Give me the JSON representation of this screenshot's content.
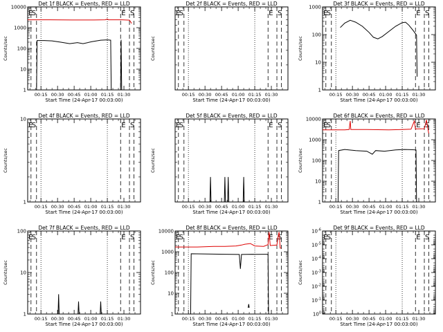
{
  "x_axis": {
    "label": "Start Time (24-Apr-17 00:03:00)",
    "range_minutes": [
      0,
      102
    ],
    "ticks": [
      {
        "minute": 12,
        "label": "00:15"
      },
      {
        "minute": 27,
        "label": "00:30"
      },
      {
        "minute": 42,
        "label": "00:45"
      },
      {
        "minute": 57,
        "label": "01:00"
      },
      {
        "minute": 72,
        "label": "01:15"
      },
      {
        "minute": 87,
        "label": "01:30"
      }
    ]
  },
  "y_axis_label": "Counts/sec",
  "colors": {
    "events": "#000000",
    "lld": "#dd0000"
  },
  "chart_data": [
    {
      "type": "line",
      "title": "Det 1f BLACK = Events, RED = LLD",
      "yscale": "log",
      "ylim": [
        1,
        10000
      ],
      "yticks": [
        {
          "v": 1,
          "label": "1"
        },
        {
          "v": 10,
          "label": "10"
        },
        {
          "v": 100,
          "label": "100"
        },
        {
          "v": 1000,
          "label": "1000"
        },
        {
          "v": 10000,
          "label": "10000"
        }
      ],
      "markers": [
        {
          "label": "E",
          "minute": 0
        },
        {
          "label": "S",
          "minute": 3
        },
        {
          "label": "E",
          "minute": 84
        },
        {
          "label": "S",
          "minute": 92
        }
      ],
      "dotted_minutes": [
        12,
        72
      ],
      "dashed_minutes": [
        0,
        3,
        8,
        84,
        92,
        96
      ],
      "series": [
        {
          "color": "events",
          "values": [
            [
              8,
              1
            ],
            [
              8.5,
              240
            ],
            [
              15,
              240
            ],
            [
              22,
              230
            ],
            [
              30,
              200
            ],
            [
              38,
              170
            ],
            [
              45,
              190
            ],
            [
              50,
              170
            ],
            [
              58,
              210
            ],
            [
              66,
              250
            ],
            [
              72,
              260
            ],
            [
              75,
              250
            ],
            [
              75.5,
              1
            ],
            [
              84,
              1
            ],
            [
              84.5,
              260
            ],
            [
              85,
              1
            ]
          ]
        },
        {
          "color": "lld",
          "values": [
            [
              0,
              2400
            ],
            [
              20,
              2400
            ],
            [
              40,
              2350
            ],
            [
              60,
              2350
            ],
            [
              70,
              2400
            ],
            [
              72,
              2600
            ],
            [
              73,
              2400
            ],
            [
              85,
              2400
            ],
            [
              92,
              2300
            ],
            [
              94,
              1600
            ]
          ]
        }
      ]
    },
    {
      "type": "line",
      "title": "Det 2f BLACK = Events, RED = LLD",
      "yscale": "log",
      "ylim": [
        1,
        10
      ],
      "yticks": [],
      "markers": [
        {
          "label": "E",
          "minute": 0
        },
        {
          "label": "S",
          "minute": 3
        },
        {
          "label": "E",
          "minute": 84
        },
        {
          "label": "S",
          "minute": 92
        }
      ],
      "dotted_minutes": [
        12,
        72
      ],
      "dashed_minutes": [
        0,
        3,
        8,
        84,
        92,
        96
      ],
      "series": []
    },
    {
      "type": "line",
      "title": "Det 3f BLACK = Events, RED = LLD",
      "yscale": "log",
      "ylim": [
        1,
        1000
      ],
      "yticks": [
        {
          "v": 1,
          "label": "1"
        },
        {
          "v": 10,
          "label": "10"
        },
        {
          "v": 100,
          "label": "100"
        },
        {
          "v": 1000,
          "label": "1000"
        }
      ],
      "markers": [
        {
          "label": "E",
          "minute": 0
        },
        {
          "label": "S",
          "minute": 3
        },
        {
          "label": "E",
          "minute": 84
        },
        {
          "label": "S",
          "minute": 92
        }
      ],
      "dotted_minutes": [
        12,
        72
      ],
      "dashed_minutes": [
        0,
        3,
        8,
        84,
        92,
        96
      ],
      "series": [
        {
          "color": "events",
          "values": [
            [
              16,
              180
            ],
            [
              20,
              260
            ],
            [
              25,
              330
            ],
            [
              30,
              280
            ],
            [
              36,
              200
            ],
            [
              42,
              120
            ],
            [
              46,
              80
            ],
            [
              50,
              70
            ],
            [
              54,
              85
            ],
            [
              60,
              130
            ],
            [
              66,
              200
            ],
            [
              72,
              270
            ],
            [
              75,
              280
            ],
            [
              78,
              220
            ],
            [
              82,
              140
            ],
            [
              85,
              95
            ],
            [
              85.5,
              3
            ]
          ]
        }
      ]
    },
    {
      "type": "line",
      "title": "Det 4f BLACK = Events, RED = LLD",
      "yscale": "log",
      "ylim": [
        1,
        10
      ],
      "yticks": [
        {
          "v": 1,
          "label": "1"
        },
        {
          "v": 10,
          "label": "10"
        }
      ],
      "markers": [
        {
          "label": "E",
          "minute": 0
        },
        {
          "label": "S",
          "minute": 3
        },
        {
          "label": "E",
          "minute": 84
        },
        {
          "label": "S",
          "minute": 92
        }
      ],
      "dotted_minutes": [
        12,
        72
      ],
      "dashed_minutes": [
        0,
        3,
        8,
        84,
        92,
        96
      ],
      "series": []
    },
    {
      "type": "line",
      "title": "Det 5f BLACK = Events, RED = LLD",
      "yscale": "log",
      "ylim": [
        1,
        10
      ],
      "yticks": [],
      "markers": [
        {
          "label": "E",
          "minute": 0
        },
        {
          "label": "S",
          "minute": 3
        },
        {
          "label": "E",
          "minute": 84
        },
        {
          "label": "S",
          "minute": 92
        }
      ],
      "dotted_minutes": [
        12,
        72
      ],
      "dashed_minutes": [
        0,
        3,
        8,
        84,
        92,
        96
      ],
      "series": [
        {
          "color": "events",
          "values": [
            [
              31.5,
              1
            ],
            [
              32,
              2
            ],
            [
              32.5,
              1
            ]
          ]
        },
        {
          "color": "events",
          "values": [
            [
              44.5,
              1
            ],
            [
              45,
              2
            ],
            [
              45.5,
              1
            ]
          ]
        },
        {
          "color": "events",
          "values": [
            [
              47.5,
              1
            ],
            [
              48,
              2
            ],
            [
              48.5,
              1
            ]
          ]
        },
        {
          "color": "events",
          "values": [
            [
              61.5,
              1
            ],
            [
              62,
              2
            ],
            [
              62.5,
              1
            ]
          ]
        }
      ]
    },
    {
      "type": "line",
      "title": "Det 6f BLACK = Events, RED = LLD",
      "yscale": "log",
      "ylim": [
        1,
        10000
      ],
      "yticks": [
        {
          "v": 1,
          "label": "1"
        },
        {
          "v": 10,
          "label": "10"
        },
        {
          "v": 100,
          "label": "100"
        },
        {
          "v": 1000,
          "label": "1000"
        },
        {
          "v": 10000,
          "label": "10000"
        }
      ],
      "markers": [
        {
          "label": "E",
          "minute": 0
        },
        {
          "label": "S",
          "minute": 3
        },
        {
          "label": "E",
          "minute": 84
        },
        {
          "label": "S",
          "minute": 92
        }
      ],
      "dotted_minutes": [
        12,
        72
      ],
      "dashed_minutes": [
        0,
        3,
        8,
        84,
        92,
        96
      ],
      "series": [
        {
          "color": "events",
          "values": [
            [
              14,
              1
            ],
            [
              14.5,
              300
            ],
            [
              20,
              340
            ],
            [
              30,
              300
            ],
            [
              40,
              280
            ],
            [
              45,
              200
            ],
            [
              48,
              300
            ],
            [
              56,
              280
            ],
            [
              66,
              320
            ],
            [
              74,
              340
            ],
            [
              80,
              330
            ],
            [
              84.5,
              320
            ],
            [
              85,
              1
            ]
          ]
        },
        {
          "color": "lld",
          "values": [
            [
              0,
              3000
            ],
            [
              20,
              3000
            ],
            [
              24,
              3100
            ],
            [
              25,
              8000
            ],
            [
              25.5,
              3100
            ],
            [
              40,
              3100
            ],
            [
              60,
              3000
            ],
            [
              72,
              3100
            ],
            [
              80,
              3200
            ],
            [
              83,
              8000
            ],
            [
              84,
              3300
            ],
            [
              92,
              3400
            ],
            [
              94,
              9000
            ],
            [
              95,
              4000
            ],
            [
              96,
              2000
            ]
          ]
        }
      ]
    },
    {
      "type": "line",
      "title": "Det 7f BLACK = Events, RED = LLD",
      "yscale": "log",
      "ylim": [
        1,
        100
      ],
      "yticks": [
        {
          "v": 1,
          "label": "1"
        },
        {
          "v": 10,
          "label": "10"
        },
        {
          "v": 100,
          "label": "100"
        }
      ],
      "markers": [
        {
          "label": "E",
          "minute": 0
        },
        {
          "label": "S",
          "minute": 3
        },
        {
          "label": "E",
          "minute": 84
        },
        {
          "label": "S",
          "minute": 92
        }
      ],
      "dotted_minutes": [
        12,
        72
      ],
      "dashed_minutes": [
        0,
        3,
        8,
        84,
        92,
        96
      ],
      "series": [
        {
          "color": "events",
          "values": [
            [
              27.5,
              1
            ],
            [
              28,
              3
            ],
            [
              28.5,
              1
            ]
          ]
        },
        {
          "color": "events",
          "values": [
            [
              45.5,
              1
            ],
            [
              46,
              2
            ],
            [
              46.5,
              1
            ]
          ]
        },
        {
          "color": "events",
          "values": [
            [
              65.5,
              1
            ],
            [
              66,
              2
            ],
            [
              66.5,
              1
            ]
          ]
        }
      ]
    },
    {
      "type": "line",
      "title": "Det 8f BLACK = Events, RED = LLD",
      "yscale": "log",
      "ylim": [
        1,
        10000
      ],
      "yticks": [
        {
          "v": 1,
          "label": "1"
        },
        {
          "v": 10,
          "label": "10"
        },
        {
          "v": 100,
          "label": "100"
        },
        {
          "v": 1000,
          "label": "1000"
        },
        {
          "v": 10000,
          "label": "10000"
        }
      ],
      "markers": [
        {
          "label": "E",
          "minute": 0
        },
        {
          "label": "S",
          "minute": 3
        },
        {
          "label": "E",
          "minute": 84
        },
        {
          "label": "S",
          "minute": 92
        }
      ],
      "dotted_minutes": [
        12,
        72
      ],
      "dashed_minutes": [
        0,
        3,
        8,
        84,
        92,
        96
      ],
      "series": [
        {
          "color": "events",
          "values": [
            [
              14,
              1
            ],
            [
              14.5,
              800
            ],
            [
              30,
              780
            ],
            [
              45,
              760
            ],
            [
              58,
              740
            ],
            [
              59,
              150
            ],
            [
              60,
              740
            ],
            [
              70,
              760
            ],
            [
              72,
              750
            ],
            [
              84,
              760
            ],
            [
              84.5,
              1
            ]
          ]
        },
        {
          "color": "events",
          "values": [
            [
              66,
              2
            ],
            [
              66.5,
              3
            ],
            [
              67,
              2
            ]
          ]
        },
        {
          "color": "lld",
          "values": [
            [
              0,
              1700
            ],
            [
              20,
              1700
            ],
            [
              35,
              1800
            ],
            [
              45,
              1800
            ],
            [
              55,
              1900
            ],
            [
              60,
              2100
            ],
            [
              63,
              2300
            ],
            [
              68,
              2500
            ],
            [
              72,
              1900
            ],
            [
              80,
              1800
            ],
            [
              84,
              2200
            ],
            [
              85,
              9000
            ],
            [
              86,
              2000
            ],
            [
              92,
              2100
            ],
            [
              93,
              5000
            ],
            [
              94,
              9000
            ],
            [
              95,
              1500
            ],
            [
              96,
              1500
            ]
          ]
        }
      ]
    },
    {
      "type": "line",
      "title": "Det 9f BLACK = Events, RED = LLD",
      "yscale": "log",
      "ylim": [
        1,
        1e-06
      ],
      "yticks": [
        {
          "v": 1,
          "label": "10^0"
        },
        {
          "v": 0.1,
          "label": "10^-1"
        },
        {
          "v": 0.01,
          "label": "10^-2"
        },
        {
          "v": 0.001,
          "label": "10^-3"
        },
        {
          "v": 0.0001,
          "label": "10^-4"
        },
        {
          "v": 1e-05,
          "label": "10^-5"
        },
        {
          "v": 1e-06,
          "label": "10^-6"
        }
      ],
      "markers": [
        {
          "label": "E",
          "minute": 0
        },
        {
          "label": "S",
          "minute": 3
        },
        {
          "label": "E",
          "minute": 84
        },
        {
          "label": "S",
          "minute": 92
        }
      ],
      "dotted_minutes": [
        12,
        72
      ],
      "dashed_minutes": [
        0,
        3,
        8,
        84,
        92,
        96
      ],
      "series": []
    }
  ]
}
